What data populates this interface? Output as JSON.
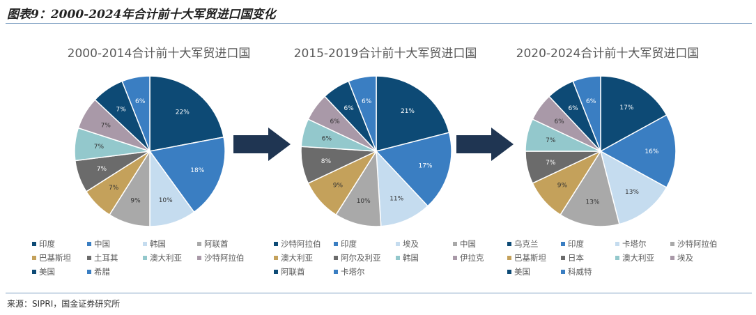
{
  "figure_title": "图表9：2000-2024年合计前十大军贸进口国变化",
  "source": "来源：SIPRI，国金证券研究所",
  "colors": {
    "navy": "#0d4a75",
    "blue": "#3a7ec2",
    "lightblue": "#c5dcef",
    "gray": "#a9a9a9",
    "gold": "#c4a15b",
    "darkgray": "#6b6b6b",
    "teal": "#93c8cc",
    "mauve": "#a999a8",
    "arrow": "#1f3552"
  },
  "chart_data": [
    {
      "type": "pie",
      "title": "2000-2014合计前十大军贸进口国",
      "slices": [
        {
          "name": "印度",
          "value": 22,
          "label": "22%",
          "color": "#0d4a75"
        },
        {
          "name": "中国",
          "value": 18,
          "label": "18%",
          "color": "#3a7ec2"
        },
        {
          "name": "韩国",
          "value": 10,
          "label": "10%",
          "color": "#c5dcef"
        },
        {
          "name": "阿联酋",
          "value": 9,
          "label": "9%",
          "color": "#a9a9a9"
        },
        {
          "name": "巴基斯坦",
          "value": 7,
          "label": "7%",
          "color": "#c4a15b"
        },
        {
          "name": "土耳其",
          "value": 7,
          "label": "7%",
          "color": "#6b6b6b"
        },
        {
          "name": "澳大利亚",
          "value": 7,
          "label": "7%",
          "color": "#93c8cc"
        },
        {
          "name": "沙特阿拉伯",
          "value": 7,
          "label": "7%",
          "color": "#a999a8"
        },
        {
          "name": "美国",
          "value": 7,
          "label": "7%",
          "color": "#0d4a75"
        },
        {
          "name": "希腊",
          "value": 6,
          "label": "6%",
          "color": "#3a7ec2"
        }
      ]
    },
    {
      "type": "pie",
      "title": "2015-2019合计前十大军贸进口国",
      "slices": [
        {
          "name": "沙特阿拉伯",
          "value": 21,
          "label": "21%",
          "color": "#0d4a75"
        },
        {
          "name": "印度",
          "value": 17,
          "label": "17%",
          "color": "#3a7ec2"
        },
        {
          "name": "埃及",
          "value": 11,
          "label": "11%",
          "color": "#c5dcef"
        },
        {
          "name": "中国",
          "value": 10,
          "label": "10%",
          "color": "#a9a9a9"
        },
        {
          "name": "澳大利亚",
          "value": 9,
          "label": "9%",
          "color": "#c4a15b"
        },
        {
          "name": "阿尔及利亚",
          "value": 8,
          "label": "8%",
          "color": "#6b6b6b"
        },
        {
          "name": "韩国",
          "value": 6,
          "label": "6%",
          "color": "#93c8cc"
        },
        {
          "name": "伊拉克",
          "value": 6,
          "label": "6%",
          "color": "#a999a8"
        },
        {
          "name": "阿联酋",
          "value": 6,
          "label": "6%",
          "color": "#0d4a75"
        },
        {
          "name": "卡塔尔",
          "value": 6,
          "label": "6%",
          "color": "#3a7ec2"
        }
      ]
    },
    {
      "type": "pie",
      "title": "2020-2024合计前十大军贸进口国",
      "slices": [
        {
          "name": "乌克兰",
          "value": 17,
          "label": "17%",
          "color": "#0d4a75"
        },
        {
          "name": "印度",
          "value": 16,
          "label": "16%",
          "color": "#3a7ec2"
        },
        {
          "name": "卡塔尔",
          "value": 13,
          "label": "13%",
          "color": "#c5dcef"
        },
        {
          "name": "沙特阿拉伯",
          "value": 13,
          "label": "13%",
          "color": "#a9a9a9"
        },
        {
          "name": "巴基斯坦",
          "value": 9,
          "label": "9%",
          "color": "#c4a15b"
        },
        {
          "name": "日本",
          "value": 7,
          "label": "7%",
          "color": "#6b6b6b"
        },
        {
          "name": "澳大利亚",
          "value": 7,
          "label": "7%",
          "color": "#93c8cc"
        },
        {
          "name": "埃及",
          "value": 6,
          "label": "6%",
          "color": "#a999a8"
        },
        {
          "name": "美国",
          "value": 6,
          "label": "6%",
          "color": "#0d4a75"
        },
        {
          "name": "科威特",
          "value": 6,
          "label": "6%",
          "color": "#3a7ec2"
        }
      ]
    }
  ]
}
